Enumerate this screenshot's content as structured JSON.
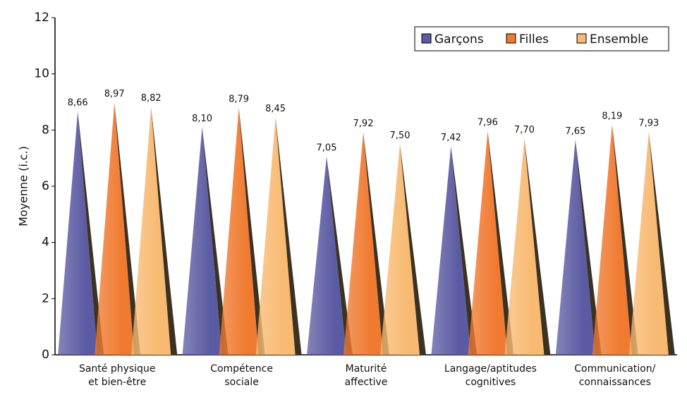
{
  "chart_data": {
    "type": "bar",
    "y_label": "Moyenne (i.c.)",
    "categories": [
      [
        "Santé physique",
        "et bien-être"
      ],
      [
        "Compétence",
        "sociale"
      ],
      [
        "Maturité",
        "affective"
      ],
      [
        "Langage/aptitudes",
        "cognitives"
      ],
      [
        "Communication/",
        "connaissances"
      ]
    ],
    "series": [
      {
        "name": "Garçons",
        "color": "#5b5ba3",
        "values": [
          8.66,
          8.1,
          7.05,
          7.42,
          7.65
        ],
        "value_labels": [
          "8,66",
          "8,10",
          "7,05",
          "7,42",
          "7,65"
        ]
      },
      {
        "name": "Filles",
        "color": "#f07a30",
        "values": [
          8.97,
          8.79,
          7.92,
          7.96,
          8.19
        ],
        "value_labels": [
          "8,97",
          "8,79",
          "7,92",
          "7,96",
          "8,19"
        ]
      },
      {
        "name": "Ensemble",
        "color": "#f8ba72",
        "values": [
          8.82,
          8.45,
          7.5,
          7.7,
          7.93
        ],
        "value_labels": [
          "8,82",
          "8,45",
          "7,50",
          "7,70",
          "7,93"
        ]
      }
    ],
    "ylim": [
      0,
      12
    ],
    "yticks": [
      0,
      2,
      4,
      6,
      8,
      10,
      12
    ],
    "legend": "top-right"
  }
}
